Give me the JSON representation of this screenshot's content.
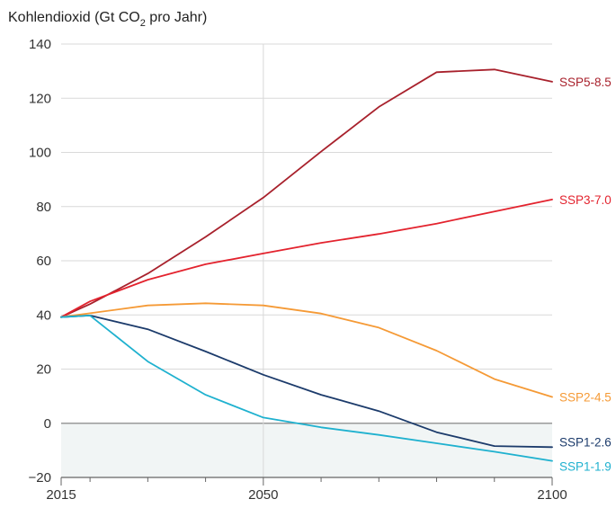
{
  "chart_data": {
    "type": "line",
    "title_main": "Kohlendioxid (Gt CO",
    "title_sub": "2",
    "title_rest": " pro Jahr)",
    "xlim": [
      2015,
      2100
    ],
    "ylim": [
      -20,
      140
    ],
    "y_ticks": [
      -20,
      0,
      20,
      40,
      60,
      80,
      100,
      120,
      140
    ],
    "x_tick_labels": [
      2015,
      2050,
      2100
    ],
    "x_minor_ticks": [
      2020,
      2030,
      2040,
      2060,
      2070,
      2080,
      2090
    ],
    "negative_region_color": "#f1f5f5",
    "grid": true,
    "series": [
      {
        "name": "SSP5-8.5",
        "color": "#a8212c",
        "x": [
          2015,
          2020,
          2030,
          2040,
          2050,
          2060,
          2070,
          2080,
          2090,
          2100
        ],
        "y": [
          39.2,
          44,
          55.3,
          68.8,
          83.3,
          100.3,
          116.8,
          129.6,
          130.6,
          126.1
        ]
      },
      {
        "name": "SSP3-7.0",
        "color": "#e3232e",
        "x": [
          2015,
          2020,
          2030,
          2040,
          2050,
          2060,
          2070,
          2080,
          2090,
          2100
        ],
        "y": [
          39.2,
          45,
          53,
          58.7,
          62.7,
          66.6,
          69.9,
          73.7,
          78.2,
          82.6
        ]
      },
      {
        "name": "SSP2-4.5",
        "color": "#f59a36",
        "x": [
          2015,
          2020,
          2030,
          2040,
          2050,
          2060,
          2070,
          2080,
          2090,
          2100
        ],
        "y": [
          39.2,
          40.6,
          43.5,
          44.3,
          43.5,
          40.5,
          35.3,
          26.8,
          16.3,
          9.7
        ]
      },
      {
        "name": "SSP1-2.6",
        "color": "#1c3b6b",
        "x": [
          2015,
          2020,
          2030,
          2040,
          2050,
          2060,
          2070,
          2080,
          2090,
          2100
        ],
        "y": [
          39.2,
          39.8,
          34.7,
          26.5,
          17.9,
          10.5,
          4.5,
          -3.3,
          -8.4,
          -8.8
        ]
      },
      {
        "name": "SSP1-1.9",
        "color": "#1fb1cf",
        "x": [
          2015,
          2020,
          2030,
          2040,
          2050,
          2060,
          2070,
          2080,
          2090,
          2100
        ],
        "y": [
          39.2,
          39.8,
          22.8,
          10.5,
          2.1,
          -1.5,
          -4.3,
          -7.4,
          -10.5,
          -13.9
        ]
      }
    ]
  }
}
